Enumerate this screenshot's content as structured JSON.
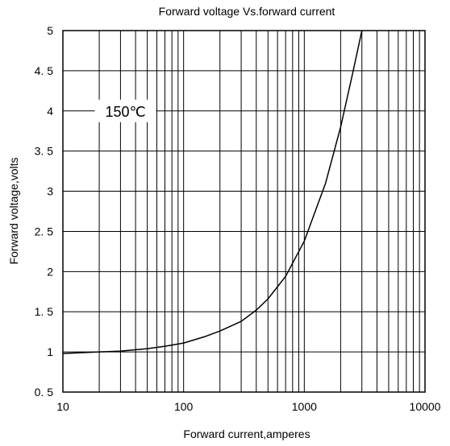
{
  "chart_data": {
    "type": "line",
    "title": "Forward voltage Vs.forward current",
    "xlabel": "Forward current,amperes",
    "ylabel": "Forward voltage,volts",
    "x_scale": "log",
    "xlim": [
      10,
      10000
    ],
    "ylim": [
      0.5,
      5
    ],
    "x_ticks": [
      10,
      100,
      1000,
      10000
    ],
    "x_tick_labels": [
      "10",
      "100",
      "1000",
      "10000"
    ],
    "y_ticks": [
      0.5,
      1,
      1.5,
      2,
      2.5,
      3,
      3.5,
      4,
      4.5,
      5
    ],
    "y_tick_labels": [
      "0. 5",
      "1",
      "1. 5",
      "2",
      "2. 5",
      "3",
      "3. 5",
      "4",
      "4. 5",
      "5"
    ],
    "grid": true,
    "annotations": [
      {
        "text": "150℃",
        "x": 33,
        "y": 4
      }
    ],
    "series": [
      {
        "color": "#000000",
        "x": [
          10,
          20,
          30,
          50,
          70,
          100,
          150,
          200,
          300,
          400,
          500,
          700,
          1000,
          1500,
          2000,
          2500,
          3000
        ],
        "y": [
          0.98,
          1.0,
          1.01,
          1.04,
          1.07,
          1.11,
          1.19,
          1.26,
          1.38,
          1.52,
          1.66,
          1.94,
          2.38,
          3.1,
          3.8,
          4.45,
          5.0
        ]
      }
    ]
  }
}
